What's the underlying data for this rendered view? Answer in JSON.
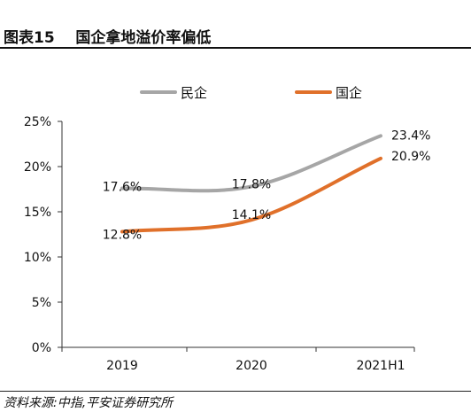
{
  "header": {
    "figure_no": "图表15",
    "title": "国企拿地溢价率偏低"
  },
  "footer": {
    "source": "资料来源:中指,平安证券研究所"
  },
  "colors": {
    "series_min": "#a6a6a6",
    "series_guo": "#e0702a",
    "axis": "#333333"
  },
  "chart_data": {
    "type": "line",
    "categories": [
      "2019",
      "2020",
      "2021H1"
    ],
    "series": [
      {
        "name": "民企",
        "values": [
          17.6,
          17.8,
          23.4
        ],
        "labels": [
          "17.6%",
          "17.8%",
          "23.4%"
        ],
        "color": "#a6a6a6"
      },
      {
        "name": "国企",
        "values": [
          12.8,
          14.1,
          20.9
        ],
        "labels": [
          "12.8%",
          "14.1%",
          "20.9%"
        ],
        "color": "#e0702a"
      }
    ],
    "ylim": [
      0,
      25
    ],
    "yticks": [
      "0%",
      "5%",
      "10%",
      "15%",
      "20%",
      "25%"
    ],
    "ytick_values": [
      0,
      5,
      10,
      15,
      20,
      25
    ],
    "legend_position": "top",
    "grid": false,
    "smooth": true
  }
}
